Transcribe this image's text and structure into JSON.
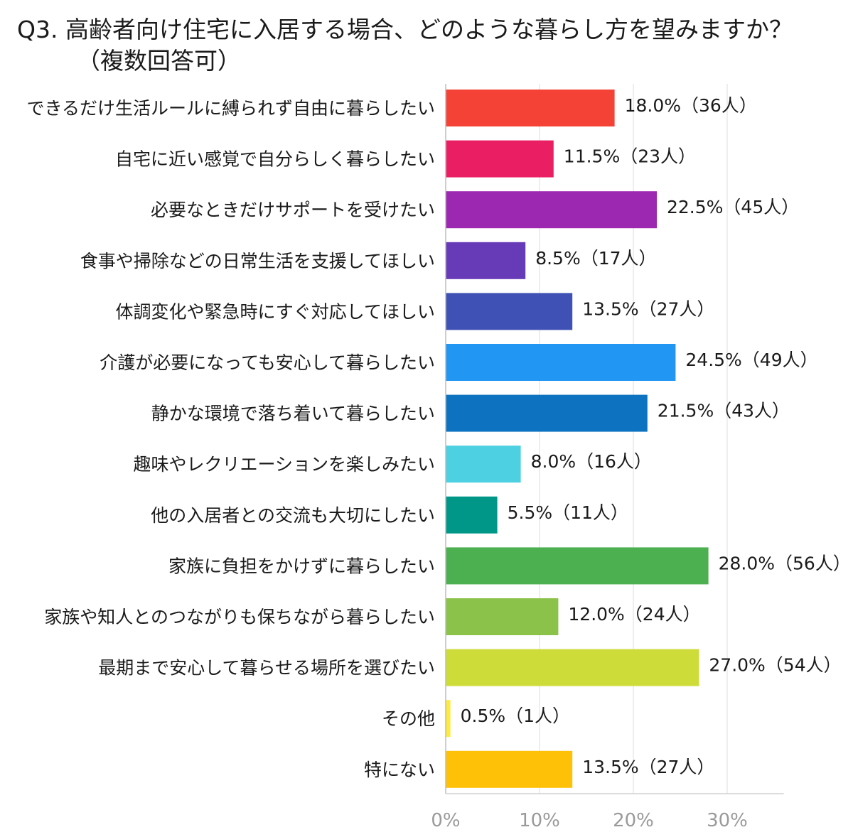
{
  "chart_data": {
    "type": "bar",
    "orientation": "horizontal",
    "title_line1": "Q3. 高齢者向け住宅に入居する場合、どのような暮らし方を望みますか？",
    "title_line2": "（複数回答可）",
    "categories": [
      "できるだけ生活ルールに縛られず自由に暮らしたい",
      "自宅に近い感覚で自分らしく暮らしたい",
      "必要なときだけサポートを受けたい",
      "食事や掃除などの日常生活を支援してほしい",
      "体調変化や緊急時にすぐ対応してほしい",
      "介護が必要になっても安心して暮らしたい",
      "静かな環境で落ち着いて暮らしたい",
      "趣味やレクリエーションを楽しみたい",
      "他の入居者との交流も大切にしたい",
      "家族に負担をかけずに暮らしたい",
      "家族や知人とのつながりも保ちながら暮らしたい",
      "最期まで安心して暮らせる場所を選びたい",
      "その他",
      "特にない"
    ],
    "values": [
      18.0,
      11.5,
      22.5,
      8.5,
      13.5,
      24.5,
      21.5,
      8.0,
      5.5,
      28.0,
      12.0,
      27.0,
      0.5,
      13.5
    ],
    "data_labels": [
      "18.0%（36人）",
      "11.5%（23人）",
      "22.5%（45人）",
      "8.5%（17人）",
      "13.5%（27人）",
      "24.5%（49人）",
      "21.5%（43人）",
      "8.0%（16人）",
      "5.5%（11人）",
      "28.0%（56人）",
      "12.0%（24人）",
      "27.0%（54人）",
      "0.5%（1人）",
      "13.5%（27人）"
    ],
    "colors": [
      "#f44336",
      "#e91e63",
      "#9c27b0",
      "#673ab7",
      "#3f51b5",
      "#2196f3",
      "#0d72c0",
      "#4dd0e1",
      "#009688",
      "#4caf50",
      "#8bc34a",
      "#cddc39",
      "#ffeb3b",
      "#ffc107"
    ],
    "xlim": [
      0,
      33
    ],
    "xticks": [
      0,
      10,
      20,
      30
    ],
    "xtick_labels": [
      "0%",
      "10%",
      "20%",
      "30%"
    ],
    "grid": true
  }
}
